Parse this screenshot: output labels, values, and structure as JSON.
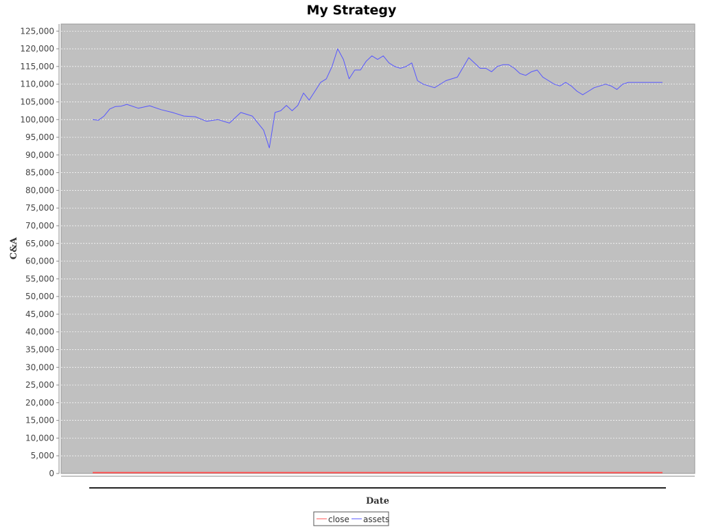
{
  "chart_data": {
    "type": "line",
    "title": "My Strategy",
    "xlabel": "Date",
    "ylabel": "C&A",
    "ylim": [
      0,
      127000
    ],
    "yticks": [
      0,
      5000,
      10000,
      15000,
      20000,
      25000,
      30000,
      35000,
      40000,
      45000,
      50000,
      55000,
      60000,
      65000,
      70000,
      75000,
      80000,
      85000,
      90000,
      95000,
      100000,
      105000,
      110000,
      115000,
      120000,
      125000
    ],
    "ytick_labels": [
      "0",
      "5,000",
      "10,000",
      "15,000",
      "20,000",
      "25,000",
      "30,000",
      "35,000",
      "40,000",
      "45,000",
      "50,000",
      "55,000",
      "60,000",
      "65,000",
      "70,000",
      "75,000",
      "80,000",
      "85,000",
      "90,000",
      "95,000",
      "100,000",
      "105,000",
      "110,000",
      "115,000",
      "120,000",
      "125,000"
    ],
    "grid": true,
    "legend_position": "bottom-center",
    "background_color": "#c0c0c0",
    "series": [
      {
        "name": "close",
        "color": "#ff5555",
        "x": [
          0,
          100
        ],
        "values": [
          250,
          250
        ]
      },
      {
        "name": "assets",
        "color": "#5555ff",
        "x": [
          0,
          1,
          2,
          3,
          4,
          5,
          6,
          8,
          10,
          12,
          14,
          16,
          18,
          20,
          22,
          24,
          26,
          28,
          30,
          31,
          32,
          33,
          34,
          35,
          36,
          37,
          38,
          39,
          40,
          41,
          42,
          43,
          44,
          45,
          46,
          47,
          48,
          49,
          50,
          51,
          52,
          53,
          54,
          55,
          56,
          57,
          58,
          60,
          62,
          64,
          66,
          68,
          69,
          70,
          71,
          72,
          73,
          74,
          75,
          76,
          77,
          78,
          79,
          80,
          81,
          82,
          83,
          84,
          85,
          86,
          87,
          88,
          89,
          90,
          91,
          92,
          93,
          94,
          95,
          96,
          97,
          98,
          99,
          100
        ],
        "values": [
          100000,
          99800,
          101000,
          103000,
          103700,
          103800,
          104300,
          103200,
          103900,
          102800,
          102000,
          101000,
          100800,
          99500,
          100000,
          99000,
          102000,
          101000,
          97000,
          92000,
          102000,
          102500,
          104000,
          102500,
          104000,
          107500,
          105500,
          108000,
          110500,
          111500,
          115000,
          120000,
          117000,
          111500,
          114000,
          114000,
          116500,
          118000,
          117000,
          118000,
          116000,
          115000,
          114500,
          115000,
          116000,
          111000,
          110000,
          109000,
          111000,
          112000,
          117500,
          114500,
          114500,
          113500,
          115000,
          115500,
          115500,
          114500,
          113000,
          112500,
          113500,
          114000,
          112000,
          111000,
          110000,
          109500,
          110500,
          109500,
          108000,
          107000,
          108000,
          109000,
          109500,
          110000,
          109500,
          108500,
          110000,
          110500,
          110500,
          110500,
          110500,
          110500,
          110500,
          110500
        ]
      }
    ]
  }
}
